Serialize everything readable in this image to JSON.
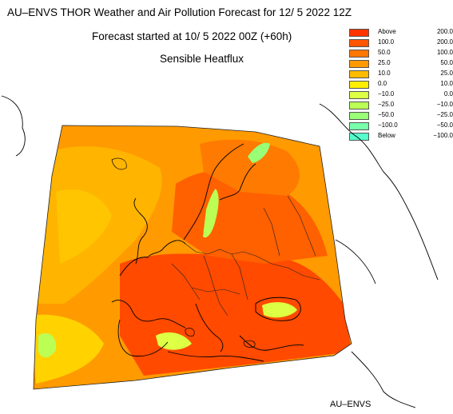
{
  "header": {
    "title": "AU–ENVS THOR Weather and Air Pollution Forecast for 12/ 5 2022  12Z",
    "subtitle": "Forecast started at 10/ 5 2022  00Z (+60h)",
    "field": "Sensible Heatflux"
  },
  "legend": [
    {
      "a": "Above",
      "b": "200.0",
      "color": "#ff3300"
    },
    {
      "a": "100.0",
      "b": "200.0",
      "color": "#ff5500"
    },
    {
      "a": "50.0",
      "b": "100.0",
      "color": "#ff7700"
    },
    {
      "a": "25.0",
      "b": "50.0",
      "color": "#ff9900"
    },
    {
      "a": "10.0",
      "b": "25.0",
      "color": "#ffbb00"
    },
    {
      "a": "0.0",
      "b": "10.0",
      "color": "#ffee00"
    },
    {
      "a": "−10.0",
      "b": "0.0",
      "color": "#ddff44"
    },
    {
      "a": "−25.0",
      "b": "−10.0",
      "color": "#bbff55"
    },
    {
      "a": "−50.0",
      "b": "−25.0",
      "color": "#99ff77"
    },
    {
      "a": "−100.0",
      "b": "−50.0",
      "color": "#77ffaa"
    },
    {
      "a": "Below",
      "b": "−100.0",
      "color": "#55ffcc"
    }
  ],
  "credit": "AU–ENVS"
}
